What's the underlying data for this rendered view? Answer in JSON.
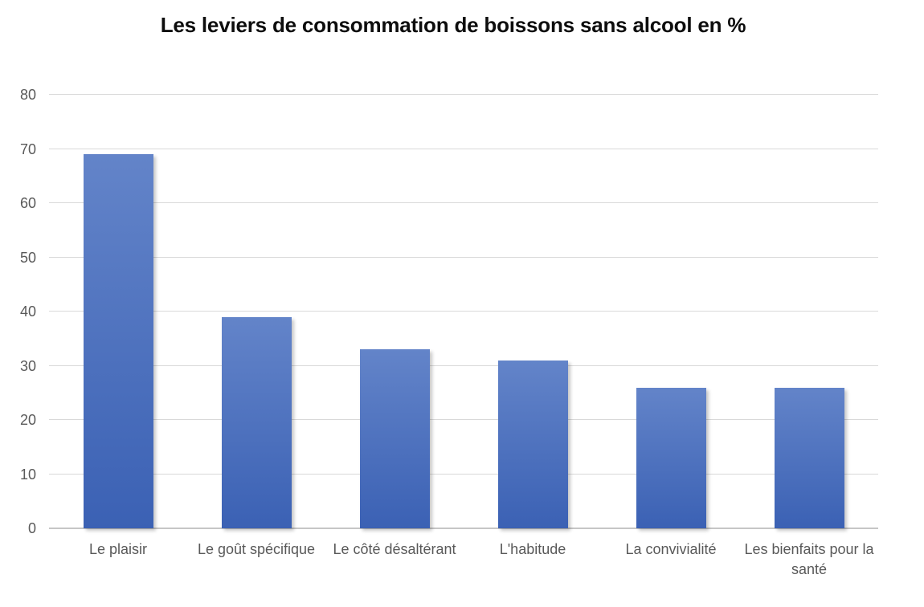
{
  "chart_data": {
    "type": "bar",
    "title": "Les leviers de consommation de boissons sans alcool en %",
    "categories": [
      "Le plaisir",
      "Le goût spécifique",
      "Le côté désaltérant",
      "L'habitude",
      "La convivialité",
      "Les bienfaits pour la santé"
    ],
    "values": [
      69,
      39,
      33,
      31,
      26,
      26
    ],
    "xlabel": "",
    "ylabel": "",
    "ylim": [
      0,
      80
    ],
    "ytick_step": 10,
    "yticks": [
      0,
      10,
      20,
      30,
      40,
      50,
      60,
      70,
      80
    ],
    "grid": true,
    "legend": "none",
    "colors": {
      "bar_gradient_top": "#6384C9",
      "bar_gradient_bottom": "#3B61B4",
      "gridline": "#D9D9D9",
      "axis_line": "#C6C6C6",
      "tick_label": "#595959",
      "title": "#0D0D0D",
      "background": "#FFFFFF"
    }
  }
}
